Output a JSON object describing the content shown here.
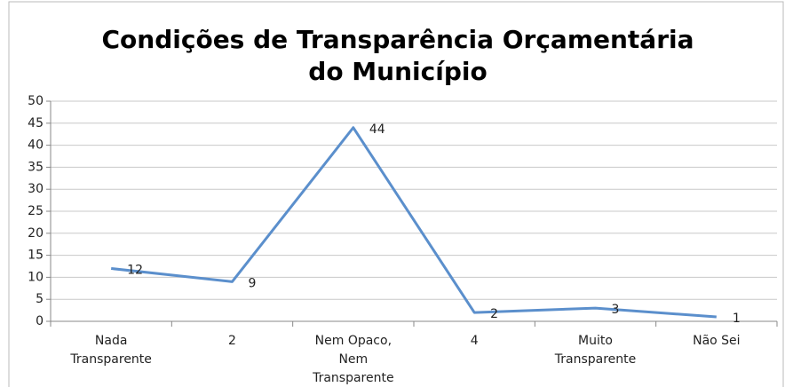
{
  "chart_data": {
    "type": "line",
    "title": "Condições de Transparência Orçamentária do Município",
    "categories": [
      "Nada Transparente",
      "2",
      "Nem Opaco, Nem Transparente",
      "4",
      "Muito Transparente",
      "Não Sei"
    ],
    "values": [
      12,
      9,
      44,
      2,
      3,
      1
    ],
    "color": "#5b8fcc",
    "ylim": [
      0,
      50
    ],
    "yticks": [
      0,
      5,
      10,
      15,
      20,
      25,
      30,
      35,
      40,
      45,
      50
    ],
    "grid": true,
    "data_labels": true
  }
}
